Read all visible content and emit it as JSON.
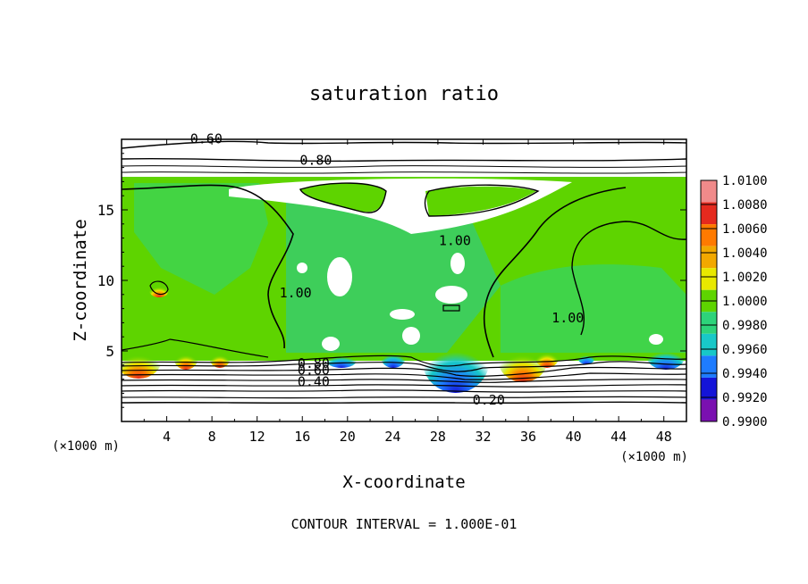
{
  "chart_data": {
    "type": "heatmap",
    "title": "saturation ratio",
    "xlabel": "X-coordinate",
    "ylabel": "Z-coordinate",
    "x_unit": "(×1000 m)",
    "z_unit": "(×1000 m)",
    "xlim": [
      0,
      50
    ],
    "ylim": [
      0,
      20
    ],
    "x_ticks": [
      4,
      8,
      12,
      16,
      20,
      24,
      28,
      32,
      36,
      40,
      44,
      48
    ],
    "y_ticks": [
      5,
      10,
      15
    ],
    "footer": "CONTOUR INTERVAL = 1.000E-01",
    "colorbar": {
      "labels": [
        "1.0100",
        "1.0080",
        "1.0060",
        "1.0040",
        "1.0020",
        "1.0000",
        "0.9980",
        "0.9960",
        "0.9940",
        "0.9920",
        "0.9900"
      ],
      "colors": [
        "#f08a8a",
        "#e52a1e",
        "#ff7a00",
        "#f2a800",
        "#e8e800",
        "#5ed400",
        "#2dd37a",
        "#18c8c8",
        "#1e7cff",
        "#1414d8",
        "#7a10b0"
      ]
    },
    "contour_labels": [
      {
        "text": "0.60",
        "x": 7.5,
        "z": 19.9
      },
      {
        "text": "0.80",
        "x": 17.2,
        "z": 18.4
      },
      {
        "text": "1.00",
        "x": 29.5,
        "z": 12.7
      },
      {
        "text": "1.00",
        "x": 15.4,
        "z": 9.0
      },
      {
        "text": "1.00",
        "x": 39.5,
        "z": 7.2
      },
      {
        "text": "0.80",
        "x": 17.0,
        "z": 4.0
      },
      {
        "text": "0.60",
        "x": 17.0,
        "z": 3.5
      },
      {
        "text": "0.40",
        "x": 17.0,
        "z": 2.7
      },
      {
        "text": "0.20",
        "x": 32.5,
        "z": 1.4
      }
    ]
  }
}
